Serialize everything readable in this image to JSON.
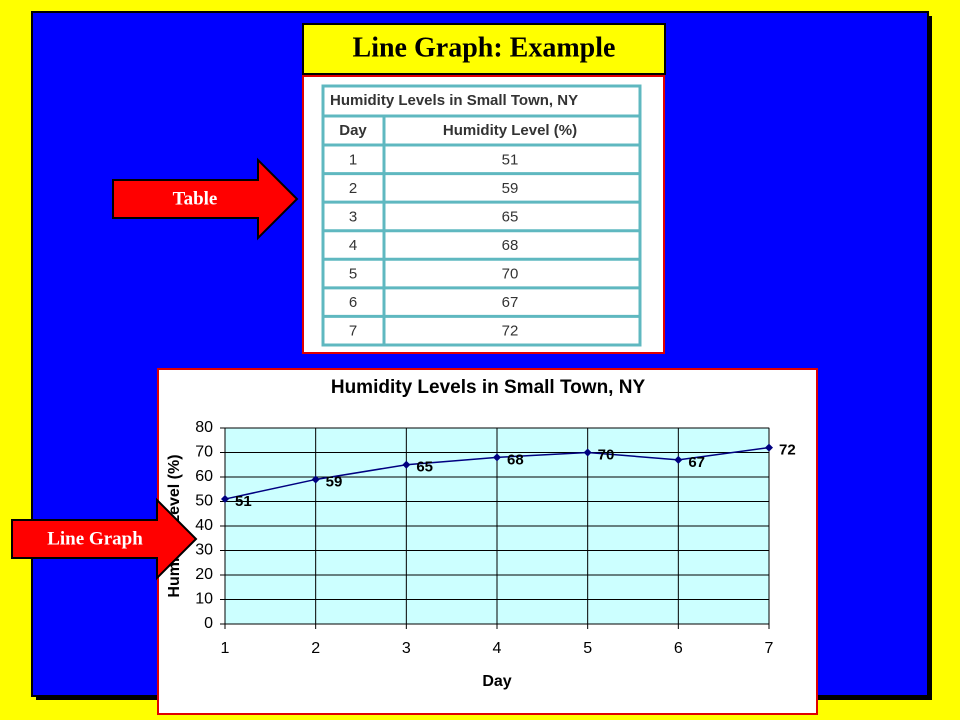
{
  "title": "Line Graph: Example",
  "arrows": [
    "Table",
    "Line Graph"
  ],
  "table": {
    "title": "Humidity Levels in Small Town, NY",
    "header": [
      "Day",
      "Humidity Level (%)"
    ],
    "rows": [
      [
        1,
        51
      ],
      [
        2,
        59
      ],
      [
        3,
        65
      ],
      [
        4,
        68
      ],
      [
        5,
        70
      ],
      [
        6,
        67
      ],
      [
        7,
        72
      ]
    ]
  },
  "chart_data": {
    "type": "line",
    "title": "Humidity Levels in Small Town, NY",
    "x": [
      1,
      2,
      3,
      4,
      5,
      6,
      7
    ],
    "values": [
      51,
      59,
      65,
      68,
      70,
      67,
      72
    ],
    "xlabel": "Day",
    "ylabel": "Humidity Level (%)",
    "xlim": [
      1,
      7
    ],
    "xticks": [
      1,
      2,
      3,
      4,
      5,
      6,
      7
    ],
    "ylim": [
      0,
      80
    ],
    "yticks": [
      0,
      10,
      20,
      30,
      40,
      50,
      60,
      70,
      80
    ],
    "color": "#000080",
    "grid": true
  }
}
